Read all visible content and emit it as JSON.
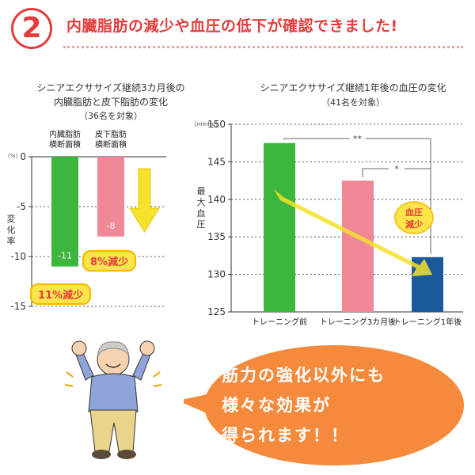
{
  "header": {
    "badge_number": "2",
    "headline": "内臓脂肪の減少や血圧の低下が確認できました!"
  },
  "chart_data": [
    {
      "type": "bar",
      "title": "シニアエクササイズ継続3カ月後の",
      "title2": "内臓脂肪と皮下脂肪の変化",
      "subtitle": "（36名を対象）",
      "unit": "(%)",
      "ylabel": "変化率",
      "ylim": [
        -15,
        0
      ],
      "yticks": [
        0,
        -5,
        -10,
        -15
      ],
      "categories": [
        "内臓脂肪 横断面積",
        "皮下脂肪 横断面積"
      ],
      "category_lines": [
        [
          "内臓脂肪",
          "横断面積"
        ],
        [
          "皮下脂肪",
          "横断面積"
        ]
      ],
      "values": [
        -11,
        -8
      ],
      "value_labels": [
        "-11",
        "-8"
      ],
      "colors": [
        "#3cb63c",
        "#f08898"
      ],
      "annotations": [
        "11%減少",
        "8%減少"
      ]
    },
    {
      "type": "bar",
      "title": "シニアエクササイズ継続1年後の血圧の変化",
      "subtitle": "（41名を対象）",
      "unit": "[mmHg]",
      "ylabel": "最大血圧",
      "ylim": [
        125,
        150
      ],
      "yticks": [
        150,
        145,
        140,
        135,
        130,
        125
      ],
      "categories": [
        "トレーニング前",
        "トレーニング3カ月後",
        "トレーニング1年後"
      ],
      "values": [
        147.5,
        142.5,
        132.3
      ],
      "colors": [
        "#3cb63c",
        "#f08898",
        "#1a5a9a"
      ],
      "significance": [
        "**",
        "*"
      ],
      "annotation": "血圧 減少",
      "annotation_lines": [
        "血圧",
        "減少"
      ]
    }
  ],
  "speech": {
    "lines": [
      "筋力の強化以外にも",
      "様々な効果が",
      "得られます！！"
    ]
  },
  "colors": {
    "accent": "#e43c3c",
    "bubble": "#f58a3c",
    "arrow": "#f5e22a"
  }
}
